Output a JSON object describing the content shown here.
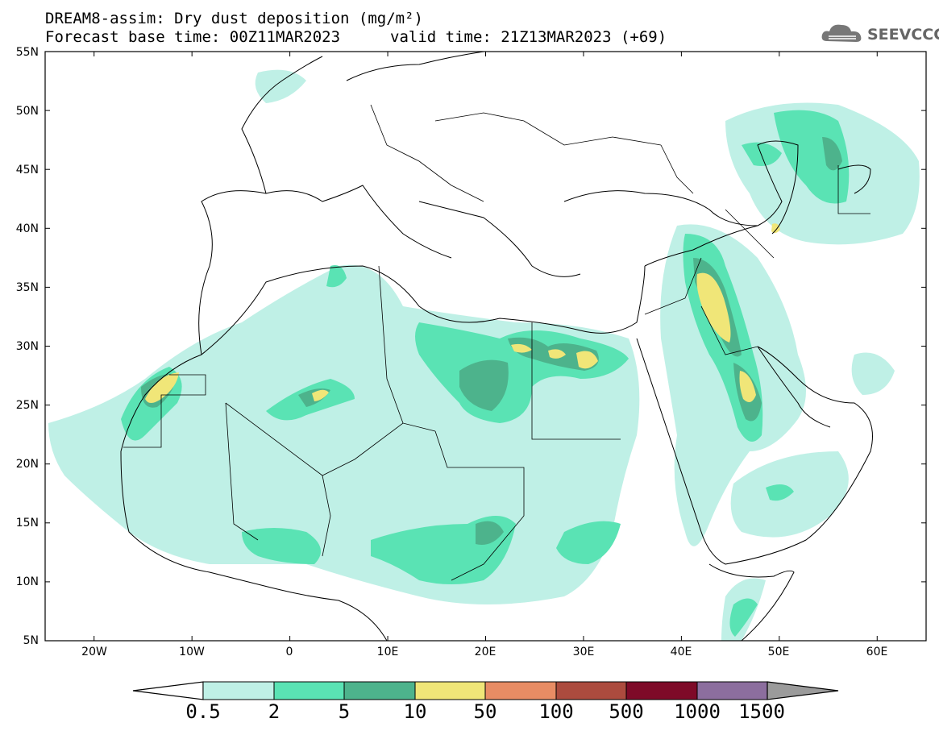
{
  "header": {
    "line1": "DREAM8-assim: Dry dust deposition (mg/m²)",
    "line2_base": "Forecast base time: 00Z11MAR2023",
    "line2_valid": "valid time: 21Z13MAR2023 (+69)",
    "logo_text": "SEEVCCC"
  },
  "map": {
    "lon_range": [
      -25,
      65
    ],
    "lat_range": [
      5,
      55
    ],
    "lat_labels": [
      "55N",
      "50N",
      "45N",
      "40N",
      "35N",
      "30N",
      "25N",
      "20N",
      "15N",
      "10N",
      "5N"
    ],
    "lon_labels": [
      "20W",
      "10W",
      "0",
      "10E",
      "20E",
      "30E",
      "40E",
      "50E",
      "60E"
    ]
  },
  "colorbar": {
    "labels": [
      "0.5",
      "2",
      "5",
      "10",
      "50",
      "100",
      "500",
      "1000",
      "1500"
    ],
    "colors": [
      "#bff0e6",
      "#5ae3b4",
      "#4db38c",
      "#f0e678",
      "#e88c64",
      "#ac4b3e",
      "#7e0a28",
      "#8c6e9e"
    ],
    "over_color": "#9b9b9b",
    "under_color": "#ffffff"
  }
}
